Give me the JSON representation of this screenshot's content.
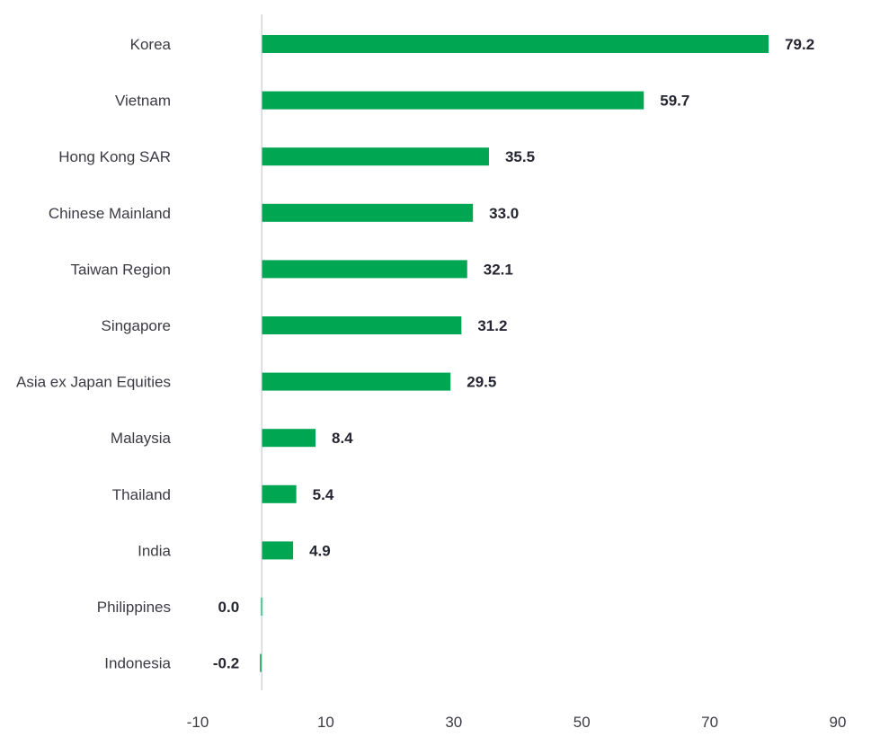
{
  "chart_data": {
    "type": "bar",
    "orientation": "horizontal",
    "title": "",
    "xlabel": "",
    "ylabel": "",
    "categories": [
      "Korea",
      "Vietnam",
      "Hong Kong SAR",
      "Chinese Mainland",
      "Taiwan Region",
      "Singapore",
      "Asia ex Japan Equities",
      "Malaysia",
      "Thailand",
      "India",
      "Philippines",
      "Indonesia"
    ],
    "values": [
      79.2,
      59.7,
      35.5,
      33.0,
      32.1,
      31.2,
      29.5,
      8.4,
      5.4,
      4.9,
      0.0,
      -0.2
    ],
    "value_labels": [
      "79.2",
      "59.7",
      "35.5",
      "33.0",
      "32.1",
      "31.2",
      "29.5",
      "8.4",
      "5.4",
      "4.9",
      "0.0",
      "-0.2"
    ],
    "xlim": [
      -10,
      90
    ],
    "xticks": [
      -10,
      10,
      30,
      50,
      70,
      90
    ],
    "xtick_labels": [
      "-10",
      "10",
      "30",
      "50",
      "70",
      "90"
    ],
    "grid": false,
    "legend": "none",
    "colors": {
      "bar": "#00a651",
      "axis": "#bfc2c7",
      "label": "#3b3b44",
      "value": "#262632"
    }
  }
}
